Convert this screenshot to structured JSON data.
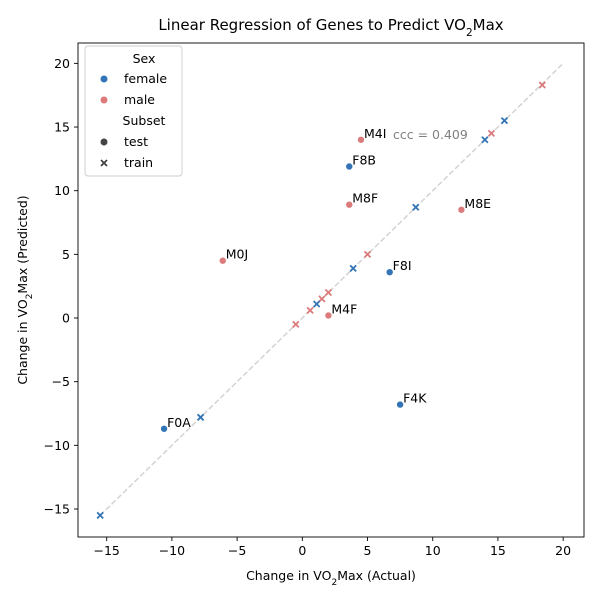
{
  "chart_data": {
    "type": "scatter",
    "title_main": "Linear Regression of Genes to Predict VO",
    "title_sub": "2",
    "title_end": "Max",
    "xlabel_main": "Change in VO",
    "xlabel_sub": "2",
    "xlabel_end": "Max (Actual)",
    "ylabel_main": "Change in VO",
    "ylabel_sub": "2",
    "ylabel_end": "Max (Predicted)",
    "xlim": [
      -17.2,
      21.6
    ],
    "ylim": [
      -17.2,
      21.6
    ],
    "xticks": [
      -15,
      -10,
      -5,
      0,
      5,
      10,
      15,
      20
    ],
    "yticks": [
      -15,
      -10,
      -5,
      0,
      5,
      10,
      15,
      20
    ],
    "identity_line": {
      "from": -15.5,
      "to": 20,
      "color": "#d3d3d3"
    },
    "annotation": "ccc = 0.409",
    "colors": {
      "female": "#3274b5",
      "male": "#db7b7b"
    },
    "legend": {
      "position": "upper-left",
      "hue_title": "Sex",
      "hue_items": [
        "female",
        "male"
      ],
      "style_title": "Subset",
      "style_items": [
        "test",
        "train"
      ]
    },
    "points": [
      {
        "x": 4.5,
        "y": 14.0,
        "sex": "male",
        "subset": "test",
        "label": "M4I"
      },
      {
        "x": 3.6,
        "y": 11.9,
        "sex": "female",
        "subset": "test",
        "label": "F8B"
      },
      {
        "x": 3.6,
        "y": 8.9,
        "sex": "male",
        "subset": "test",
        "label": "M8F"
      },
      {
        "x": 12.2,
        "y": 8.5,
        "sex": "male",
        "subset": "test",
        "label": "M8E"
      },
      {
        "x": -6.1,
        "y": 4.5,
        "sex": "male",
        "subset": "test",
        "label": "M0J"
      },
      {
        "x": 6.7,
        "y": 3.6,
        "sex": "female",
        "subset": "test",
        "label": "F8I"
      },
      {
        "x": 2.0,
        "y": 0.2,
        "sex": "male",
        "subset": "test",
        "label": "M4F"
      },
      {
        "x": 7.5,
        "y": -6.8,
        "sex": "female",
        "subset": "test",
        "label": "F4K"
      },
      {
        "x": -10.6,
        "y": -8.7,
        "sex": "female",
        "subset": "test",
        "label": "F0A"
      },
      {
        "x": 18.4,
        "y": 18.3,
        "sex": "male",
        "subset": "train",
        "label": ""
      },
      {
        "x": 15.5,
        "y": 15.5,
        "sex": "female",
        "subset": "train",
        "label": ""
      },
      {
        "x": 14.5,
        "y": 14.5,
        "sex": "male",
        "subset": "train",
        "label": ""
      },
      {
        "x": 14.0,
        "y": 14.0,
        "sex": "female",
        "subset": "train",
        "label": ""
      },
      {
        "x": 8.7,
        "y": 8.7,
        "sex": "female",
        "subset": "train",
        "label": ""
      },
      {
        "x": 5.0,
        "y": 5.0,
        "sex": "male",
        "subset": "train",
        "label": ""
      },
      {
        "x": 3.9,
        "y": 3.9,
        "sex": "female",
        "subset": "train",
        "label": ""
      },
      {
        "x": 2.0,
        "y": 2.0,
        "sex": "male",
        "subset": "train",
        "label": ""
      },
      {
        "x": 1.5,
        "y": 1.5,
        "sex": "male",
        "subset": "train",
        "label": ""
      },
      {
        "x": 1.1,
        "y": 1.1,
        "sex": "female",
        "subset": "train",
        "label": ""
      },
      {
        "x": 0.6,
        "y": 0.6,
        "sex": "male",
        "subset": "train",
        "label": ""
      },
      {
        "x": -0.5,
        "y": -0.5,
        "sex": "male",
        "subset": "train",
        "label": ""
      },
      {
        "x": -7.8,
        "y": -7.8,
        "sex": "female",
        "subset": "train",
        "label": ""
      },
      {
        "x": -15.5,
        "y": -15.5,
        "sex": "female",
        "subset": "train",
        "label": ""
      }
    ]
  }
}
